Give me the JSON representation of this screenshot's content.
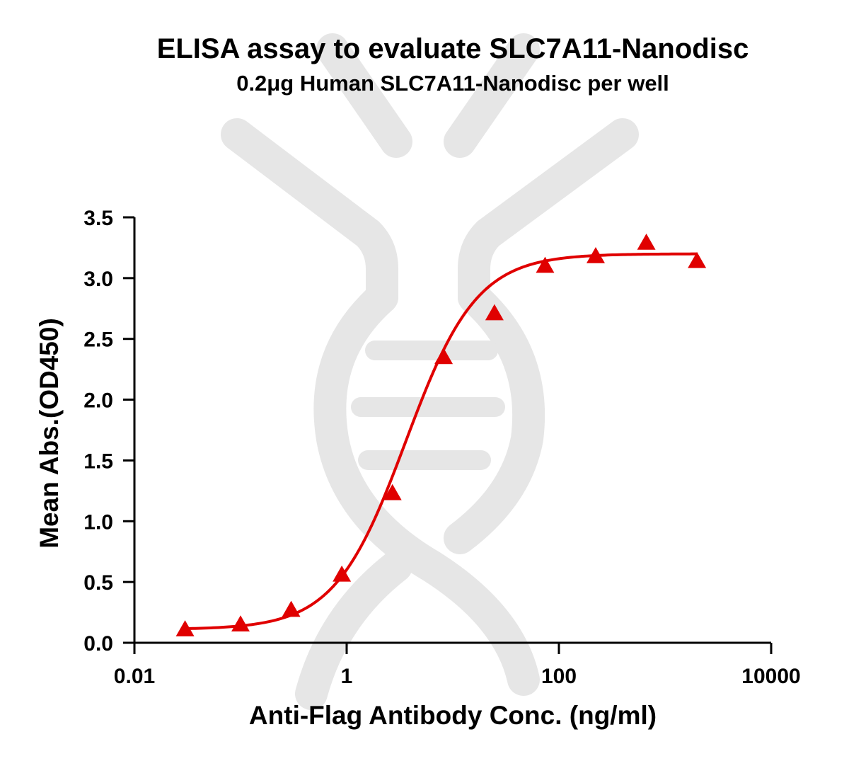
{
  "chart_data": {
    "type": "scatter",
    "title": "ELISA assay to evaluate SLC7A11-Nanodisc",
    "subtitle": "0.2μg Human SLC7A11-Nanodisc per well",
    "xlabel": "Anti-Flag Antibody Conc. (ng/ml)",
    "ylabel": "Mean Abs.(OD450)",
    "x_scale": "log",
    "xlim": [
      0.01,
      10000
    ],
    "ylim": [
      0,
      3.5
    ],
    "x_ticks": [
      0.01,
      1,
      100,
      10000
    ],
    "x_tick_labels": [
      "0.01",
      "1",
      "100",
      "10000"
    ],
    "y_ticks": [
      0,
      0.5,
      1,
      1.5,
      2,
      2.5,
      3,
      3.5
    ],
    "y_tick_labels": [
      "0.0",
      "0.5",
      "1.0",
      "1.5",
      "2.0",
      "2.5",
      "3.0",
      "3.5"
    ],
    "grid": false,
    "series": [
      {
        "marker": "triangle",
        "color": "#e00000",
        "x": [
          0.03,
          0.1,
          0.3,
          0.9,
          2.7,
          8.2,
          24.7,
          74.1,
          222.2,
          666.7,
          2000
        ],
        "y": [
          0.11,
          0.15,
          0.27,
          0.56,
          1.23,
          2.35,
          2.71,
          3.1,
          3.18,
          3.29,
          3.14
        ]
      }
    ],
    "fit_curve": {
      "color": "#e00000",
      "model": "4PL",
      "bottom": 0.11,
      "top": 3.2,
      "ec50": 3.6,
      "hill": 1.3,
      "x_range": [
        0.03,
        2000
      ]
    }
  },
  "watermark": {
    "color": "#e6e6e6"
  }
}
